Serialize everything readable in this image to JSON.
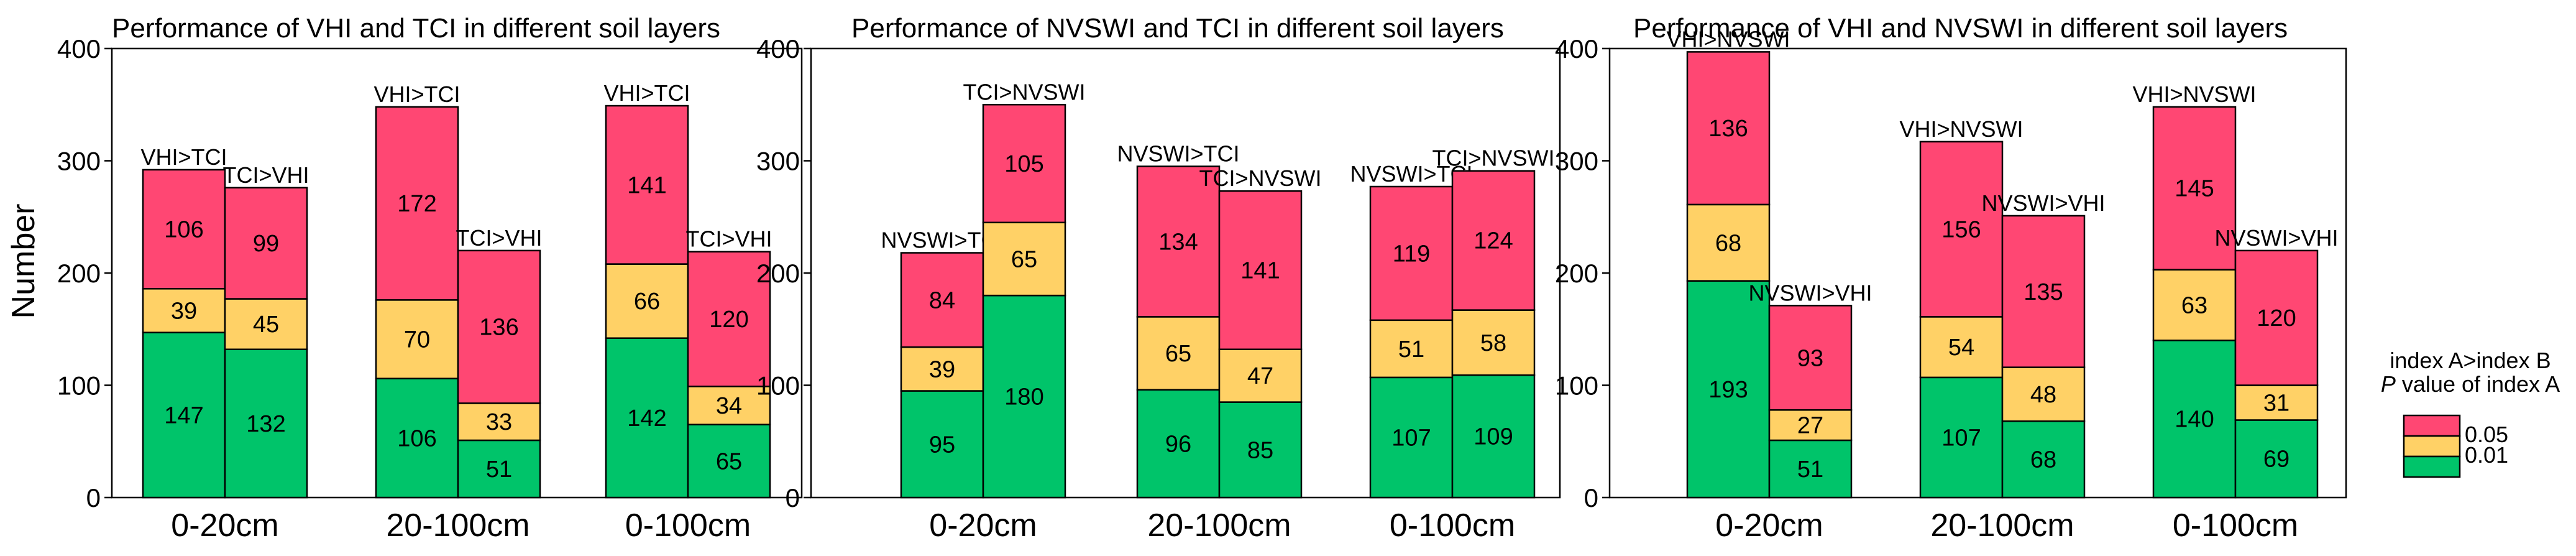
{
  "colors": {
    "green": "#00C46A",
    "yellow": "#FFD166",
    "pink": "#FF4773"
  },
  "ylabel": "Number",
  "legend": {
    "title_line1": "index A>index B",
    "title_italic": "P",
    "title_line2_rest": " value of index A",
    "items": [
      {
        "label": "0.05",
        "color": "#FF4773"
      },
      {
        "label": "0.01",
        "color": "#00C46A"
      }
    ]
  },
  "chart_data": [
    {
      "type": "bar",
      "stacked": true,
      "title": "Performance of VHI and TCI in different soil layers",
      "categories": [
        "0-20cm",
        "20-100cm",
        "0-100cm"
      ],
      "ylim": [
        0,
        400
      ],
      "yticks": [
        0,
        100,
        200,
        300,
        400
      ],
      "bars": [
        {
          "label": "VHI>TCI",
          "segments": [
            147,
            39,
            106
          ]
        },
        {
          "label": "TCI>VHI",
          "segments": [
            132,
            45,
            99
          ]
        },
        {
          "label": "VHI>TCI",
          "segments": [
            106,
            70,
            172
          ]
        },
        {
          "label": "TCI>VHI",
          "segments": [
            51,
            33,
            136
          ]
        },
        {
          "label": "VHI>TCI",
          "segments": [
            142,
            66,
            141
          ]
        },
        {
          "label": "TCI>VHI",
          "segments": [
            65,
            34,
            120
          ]
        }
      ]
    },
    {
      "type": "bar",
      "stacked": true,
      "title": "Performance of NVSWI and TCI in different soil layers",
      "categories": [
        "0-20cm",
        "20-100cm",
        "0-100cm"
      ],
      "ylim": [
        0,
        400
      ],
      "yticks": [
        0,
        100,
        200,
        300,
        400
      ],
      "bars": [
        {
          "label": "NVSWI>TCI",
          "segments": [
            95,
            39,
            84
          ]
        },
        {
          "label": "TCI>NVSWI",
          "segments": [
            180,
            65,
            105
          ]
        },
        {
          "label": "NVSWI>TCI",
          "segments": [
            96,
            65,
            134
          ]
        },
        {
          "label": "TCI>NVSWI",
          "segments": [
            85,
            47,
            141
          ]
        },
        {
          "label": "NVSWI>TCI",
          "segments": [
            107,
            51,
            119
          ]
        },
        {
          "label": "TCI>NVSWI",
          "segments": [
            109,
            58,
            124
          ]
        }
      ]
    },
    {
      "type": "bar",
      "stacked": true,
      "title": "Performance of VHI and NVSWI in different soil layers",
      "categories": [
        "0-20cm",
        "20-100cm",
        "0-100cm"
      ],
      "ylim": [
        0,
        400
      ],
      "yticks": [
        0,
        100,
        200,
        300,
        400
      ],
      "bars": [
        {
          "label": "VHI>NVSWI",
          "segments": [
            193,
            68,
            136
          ]
        },
        {
          "label": "NVSWI>VHI",
          "segments": [
            51,
            27,
            93
          ]
        },
        {
          "label": "VHI>NVSWI",
          "segments": [
            107,
            54,
            156
          ]
        },
        {
          "label": "NVSWI>VHI",
          "segments": [
            68,
            48,
            135
          ]
        },
        {
          "label": "VHI>NVSWI",
          "segments": [
            140,
            63,
            145
          ]
        },
        {
          "label": "NVSWI>VHI",
          "segments": [
            69,
            31,
            120
          ]
        }
      ]
    }
  ]
}
